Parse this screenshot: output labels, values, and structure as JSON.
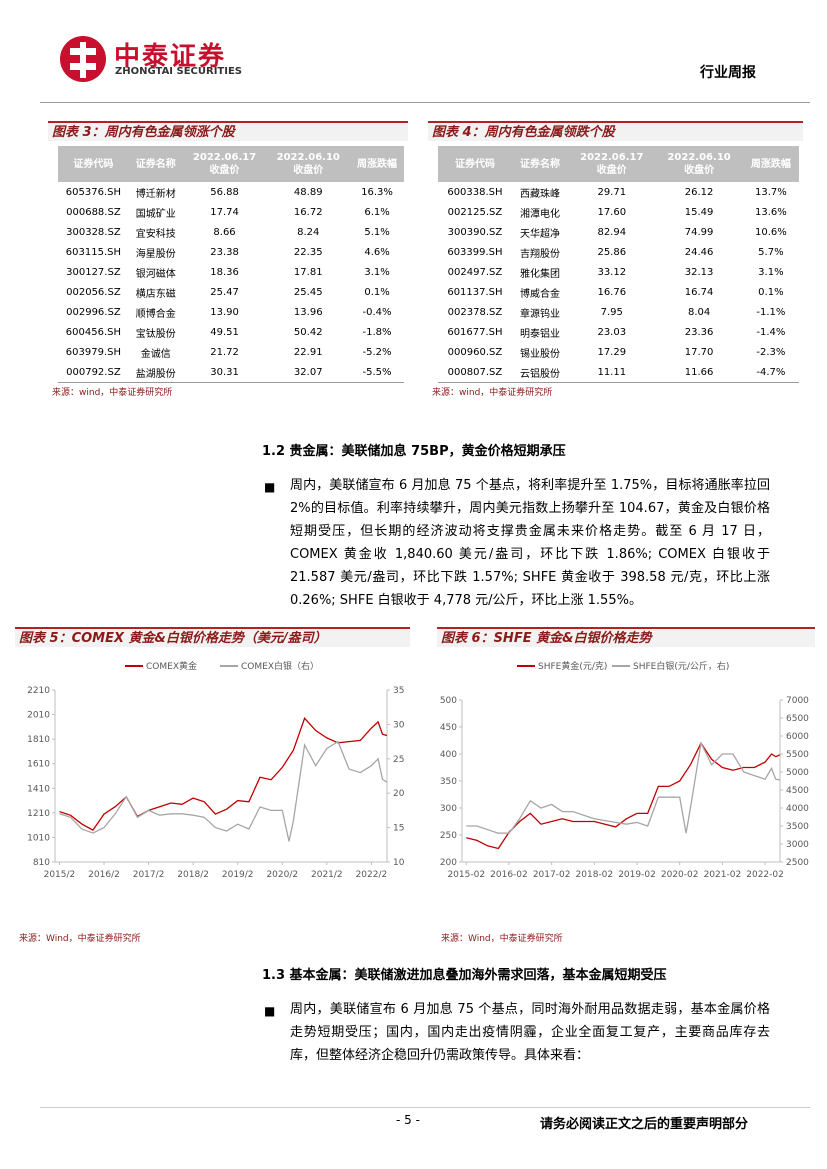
{
  "header": {
    "brand": "中泰证券",
    "brand_en": "ZHONGTAI SECURITIES",
    "doc_type": "行业周报"
  },
  "tables": [
    {
      "title": "图表 3：周内有色金属领涨个股",
      "header": [
        "证券代码",
        "证券名称",
        [
          "2022.06.17",
          "收盘价"
        ],
        [
          "2022.06.10",
          "收盘价"
        ],
        "周涨跌幅"
      ],
      "rows": [
        [
          "605376.SH",
          "博迁新材",
          "56.88",
          "48.89",
          "16.3%"
        ],
        [
          "000688.SZ",
          "国城矿业",
          "17.74",
          "16.72",
          "6.1%"
        ],
        [
          "300328.SZ",
          "宜安科技",
          "8.66",
          "8.24",
          "5.1%"
        ],
        [
          "603115.SH",
          "海星股份",
          "23.38",
          "22.35",
          "4.6%"
        ],
        [
          "300127.SZ",
          "银河磁体",
          "18.36",
          "17.81",
          "3.1%"
        ],
        [
          "002056.SZ",
          "横店东磁",
          "25.47",
          "25.45",
          "0.1%"
        ],
        [
          "002996.SZ",
          "顺博合金",
          "13.90",
          "13.96",
          "-0.4%"
        ],
        [
          "600456.SH",
          "宝钛股份",
          "49.51",
          "50.42",
          "-1.8%"
        ],
        [
          "603979.SH",
          "金诚信",
          "21.72",
          "22.91",
          "-5.2%"
        ],
        [
          "000792.SZ",
          "盐湖股份",
          "30.31",
          "32.07",
          "-5.5%"
        ]
      ],
      "source": "来源：wind，中泰证券研究所"
    },
    {
      "title": "图表 4：周内有色金属领跌个股",
      "header": [
        "证券代码",
        "证券名称",
        [
          "2022.06.17",
          "收盘价"
        ],
        [
          "2022.06.10",
          "收盘价"
        ],
        "周涨跌幅"
      ],
      "rows": [
        [
          "600338.SH",
          "西藏珠峰",
          "29.71",
          "26.12",
          "13.7%"
        ],
        [
          "002125.SZ",
          "湘潭电化",
          "17.60",
          "15.49",
          "13.6%"
        ],
        [
          "300390.SZ",
          "天华超净",
          "82.94",
          "74.99",
          "10.6%"
        ],
        [
          "603399.SH",
          "吉翔股份",
          "25.86",
          "24.46",
          "5.7%"
        ],
        [
          "002497.SZ",
          "雅化集团",
          "33.12",
          "32.13",
          "3.1%"
        ],
        [
          "601137.SH",
          "博威合金",
          "16.76",
          "16.74",
          "0.1%"
        ],
        [
          "002378.SZ",
          "章源钨业",
          "7.95",
          "8.04",
          "-1.1%"
        ],
        [
          "601677.SH",
          "明泰铝业",
          "23.03",
          "23.36",
          "-1.4%"
        ],
        [
          "000960.SZ",
          "锡业股份",
          "17.29",
          "17.70",
          "-2.3%"
        ],
        [
          "000807.SZ",
          "云铝股份",
          "11.11",
          "11.66",
          "-4.7%"
        ]
      ],
      "source": "来源：wind，中泰证券研究所"
    }
  ],
  "sections": [
    {
      "heading": "1.2 贵金属：美联储加息 75BP，黄金价格短期承压",
      "bullet": "周内，美联储宣布 6 月加息 75 个基点，将利率提升至 1.75%，目标将通胀率拉回 2%的目标值。利率持续攀升，周内美元指数上扬攀升至 104.67，黄金及白银价格短期受压，但长期的经济波动将支撑贵金属未来价格走势。截至 6 月 17 日，COMEX 黄金收 1,840.60 美元/盎司，环比下跌 1.86%; COMEX 白银收于 21.587 美元/盎司，环比下跌 1.57%; SHFE 黄金收于 398.58 元/克，环比上涨 0.26%; SHFE 白银收于 4,778 元/公斤，环比上涨 1.55%。"
    },
    {
      "heading": "1.3 基本金属：美联储激进加息叠加海外需求回落，基本金属短期受压",
      "bullet": "周内，美联储宣布 6 月加息 75 个基点，同时海外耐用品数据走弱，基本金属价格走势短期受压；国内，国内走出疫情阴霾，企业全面复工复产，主要商品库存去库，但整体经济企稳回升仍需政策传导。具体来看："
    }
  ],
  "charts": [
    {
      "type": "line",
      "title": "图表 5：COMEX 黄金&白银价格走势（美元/盎司）",
      "source": "来源：Wind，中泰证券研究所",
      "xlim": [
        2015.0,
        2022.45
      ],
      "xticks": [
        {
          "value": 2015.1,
          "label": "2015/2"
        },
        {
          "value": 2016.1,
          "label": "2016/2"
        },
        {
          "value": 2017.1,
          "label": "2017/2"
        },
        {
          "value": 2018.1,
          "label": "2018/2"
        },
        {
          "value": 2019.1,
          "label": "2019/2"
        },
        {
          "value": 2020.1,
          "label": "2020/2"
        },
        {
          "value": 2021.1,
          "label": "2021/2"
        },
        {
          "value": 2022.1,
          "label": "2022/2"
        }
      ],
      "ylim": [
        810,
        2210
      ],
      "yticks": [
        810,
        1010,
        1210,
        1410,
        1610,
        1810,
        2010,
        2210
      ],
      "y2lim": [
        10,
        35
      ],
      "y2ticks": [
        10,
        15,
        20,
        25,
        30,
        35
      ],
      "series": [
        {
          "name": "COMEX黄金",
          "color": "#c00000",
          "x": [
            2015.1,
            2015.35,
            2015.6,
            2015.85,
            2016.1,
            2016.35,
            2016.6,
            2016.85,
            2017.1,
            2017.35,
            2017.6,
            2017.85,
            2018.1,
            2018.35,
            2018.6,
            2018.85,
            2019.1,
            2019.35,
            2019.6,
            2019.85,
            2020.1,
            2020.35,
            2020.6,
            2020.85,
            2021.1,
            2021.35,
            2021.6,
            2021.85,
            2022.1,
            2022.25,
            2022.35,
            2022.45
          ],
          "values": [
            1220,
            1190,
            1120,
            1070,
            1200,
            1260,
            1340,
            1180,
            1230,
            1260,
            1290,
            1280,
            1330,
            1300,
            1200,
            1240,
            1310,
            1300,
            1500,
            1480,
            1580,
            1720,
            1980,
            1880,
            1820,
            1780,
            1790,
            1800,
            1900,
            1950,
            1850,
            1840
          ]
        },
        {
          "name": "COMEX白银（右）",
          "color": "#a6a6a6",
          "axis": "y2",
          "x": [
            2015.1,
            2015.35,
            2015.6,
            2015.85,
            2016.1,
            2016.35,
            2016.6,
            2016.85,
            2017.1,
            2017.35,
            2017.6,
            2017.85,
            2018.1,
            2018.35,
            2018.6,
            2018.85,
            2019.1,
            2019.35,
            2019.6,
            2019.85,
            2020.1,
            2020.25,
            2020.35,
            2020.6,
            2020.85,
            2021.1,
            2021.35,
            2021.6,
            2021.85,
            2022.1,
            2022.25,
            2022.35,
            2022.45
          ],
          "values": [
            17,
            16.5,
            14.8,
            14.2,
            15,
            17,
            19.5,
            16.5,
            17.5,
            16.8,
            17,
            17,
            16.8,
            16.5,
            15,
            14.5,
            15.5,
            14.8,
            18,
            17.5,
            17.5,
            13,
            16,
            27,
            24,
            26.5,
            27.5,
            23.5,
            23,
            24,
            25,
            22,
            21.6
          ]
        }
      ]
    },
    {
      "type": "line",
      "title": "图表 6：SHFE 黄金&白银价格走势",
      "source": "来源：Wind，中泰证券研究所",
      "xlim": [
        2015.0,
        2022.45
      ],
      "xticks": [
        {
          "value": 2015.1,
          "label": "2015-02"
        },
        {
          "value": 2016.1,
          "label": "2016-02"
        },
        {
          "value": 2017.1,
          "label": "2017-02"
        },
        {
          "value": 2018.1,
          "label": "2018-02"
        },
        {
          "value": 2019.1,
          "label": "2019-02"
        },
        {
          "value": 2020.1,
          "label": "2020-02"
        },
        {
          "value": 2021.1,
          "label": "2021-02"
        },
        {
          "value": 2022.1,
          "label": "2022-02"
        }
      ],
      "ylim": [
        200,
        500
      ],
      "yticks": [
        200,
        250,
        300,
        350,
        400,
        450,
        500
      ],
      "y2lim": [
        2500,
        7000
      ],
      "y2ticks": [
        2500,
        3000,
        3500,
        4000,
        4500,
        5000,
        5500,
        6000,
        6500,
        7000
      ],
      "series": [
        {
          "name": "SHFE黄金(元/克)",
          "color": "#c00000",
          "x": [
            2015.1,
            2015.35,
            2015.6,
            2015.85,
            2016.1,
            2016.35,
            2016.6,
            2016.85,
            2017.1,
            2017.35,
            2017.6,
            2017.85,
            2018.1,
            2018.35,
            2018.6,
            2018.85,
            2019.1,
            2019.35,
            2019.6,
            2019.85,
            2020.1,
            2020.35,
            2020.6,
            2020.85,
            2021.1,
            2021.35,
            2021.6,
            2021.85,
            2022.1,
            2022.25,
            2022.35,
            2022.45
          ],
          "values": [
            245,
            240,
            230,
            225,
            255,
            275,
            290,
            270,
            275,
            280,
            275,
            275,
            275,
            270,
            265,
            280,
            290,
            290,
            340,
            340,
            350,
            380,
            420,
            390,
            375,
            370,
            375,
            375,
            385,
            400,
            395,
            398.58
          ]
        },
        {
          "name": "SHFE白银(元/公斤，右)",
          "color": "#a6a6a6",
          "axis": "y2",
          "x": [
            2015.1,
            2015.35,
            2015.6,
            2015.85,
            2016.1,
            2016.35,
            2016.6,
            2016.85,
            2017.1,
            2017.35,
            2017.6,
            2017.85,
            2018.1,
            2018.35,
            2018.6,
            2018.85,
            2019.1,
            2019.35,
            2019.6,
            2019.85,
            2020.1,
            2020.25,
            2020.35,
            2020.6,
            2020.85,
            2021.1,
            2021.35,
            2021.6,
            2021.85,
            2022.1,
            2022.25,
            2022.35,
            2022.45
          ],
          "values": [
            3500,
            3500,
            3400,
            3300,
            3300,
            3700,
            4200,
            4000,
            4100,
            3900,
            3900,
            3800,
            3700,
            3650,
            3600,
            3550,
            3600,
            3500,
            4300,
            4300,
            4300,
            3300,
            4000,
            5800,
            5200,
            5500,
            5500,
            5000,
            4900,
            4800,
            5100,
            4800,
            4778
          ]
        }
      ]
    }
  ],
  "footer": {
    "page": "- 5 -",
    "notice": "请务必阅读正文之后的重要声明部分"
  }
}
